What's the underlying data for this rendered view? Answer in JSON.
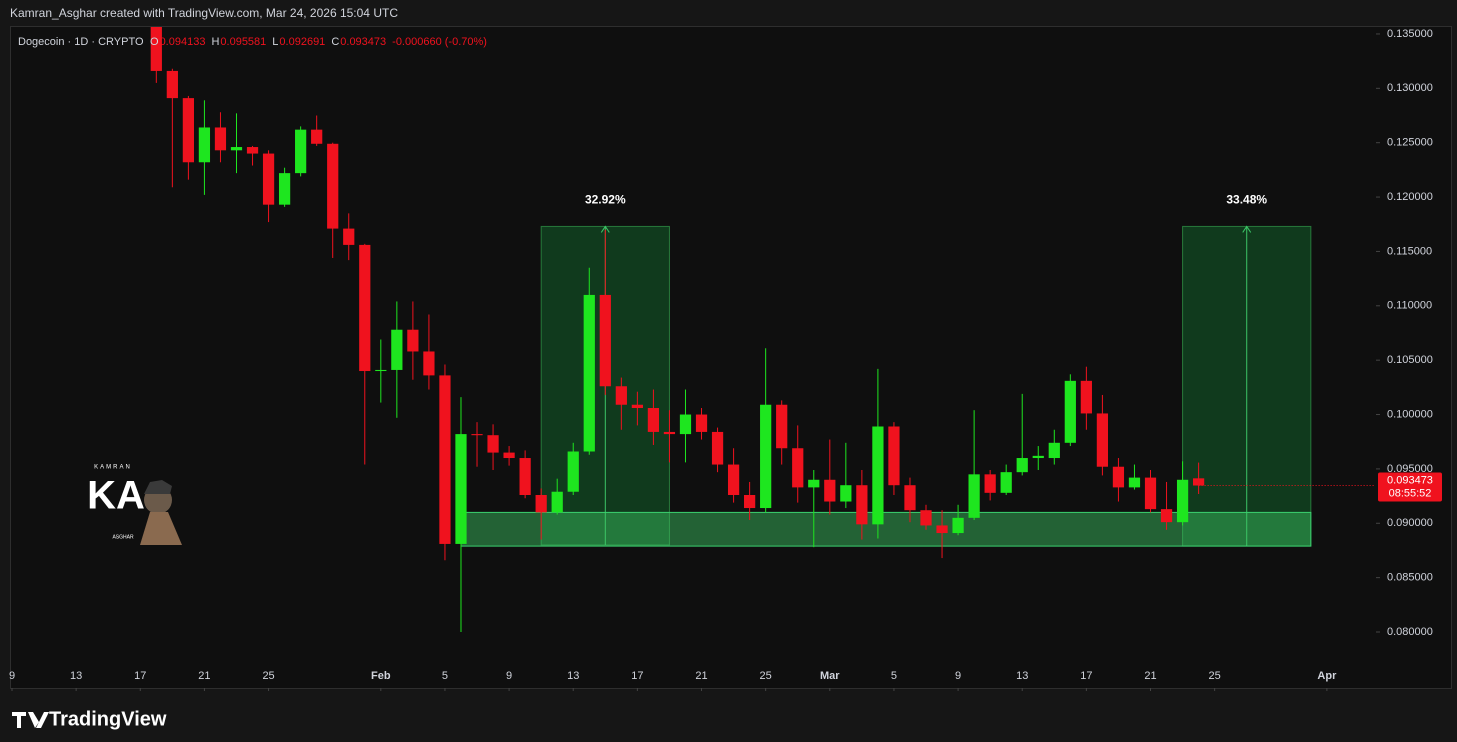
{
  "attribution": "Kamran_Asghar created with TradingView.com, Mar 24, 2026 15:04 UTC",
  "brand": "TradingView",
  "watermark": [
    "KAMRAN",
    "KA",
    "ASGHAR"
  ],
  "chart_data": {
    "type": "candlestick",
    "title": "Dogecoin · 1D · CRYPTO",
    "ohlc_labels": [
      "O",
      "H",
      "L",
      "C"
    ],
    "change": "-0.000660 (-0.70%)",
    "countdown": "08:55:52",
    "up_color": "#1ee61f",
    "down_color": "#f0121e",
    "grid": false,
    "x": [
      "01-18",
      "01-19",
      "01-20",
      "01-21",
      "01-22",
      "01-23",
      "01-24",
      "01-25",
      "01-26",
      "01-27",
      "01-28",
      "01-29",
      "01-30",
      "01-31",
      "02-01",
      "02-02",
      "02-03",
      "02-04",
      "02-05",
      "02-06",
      "02-07",
      "02-08",
      "02-09",
      "02-10",
      "02-11",
      "02-12",
      "02-13",
      "02-14",
      "02-15",
      "02-16",
      "02-17",
      "02-18",
      "02-19",
      "02-20",
      "02-21",
      "02-22",
      "02-23",
      "02-24",
      "02-25",
      "02-26",
      "02-27",
      "02-28",
      "03-01",
      "03-02",
      "03-03",
      "03-04",
      "03-05",
      "03-06",
      "03-07",
      "03-08",
      "03-09",
      "03-10",
      "03-11",
      "03-12",
      "03-13",
      "03-14",
      "03-15",
      "03-16",
      "03-17",
      "03-18",
      "03-19",
      "03-20",
      "03-21",
      "03-22",
      "03-23",
      "03-24"
    ],
    "open": [
      0.1372,
      0.1316,
      0.1291,
      0.1232,
      0.1264,
      0.1243,
      0.1246,
      0.124,
      0.1193,
      0.1222,
      0.1262,
      0.1249,
      0.1171,
      0.1156,
      0.104,
      0.1041,
      0.1078,
      0.1058,
      0.1036,
      0.0881,
      0.0982,
      0.0981,
      0.0965,
      0.096,
      0.0926,
      0.091,
      0.0929,
      0.0966,
      0.111,
      0.1026,
      0.1009,
      0.1006,
      0.0984,
      0.0982,
      0.1,
      0.0984,
      0.0954,
      0.0926,
      0.0914,
      0.1009,
      0.0969,
      0.0933,
      0.094,
      0.092,
      0.0935,
      0.0899,
      0.0989,
      0.0935,
      0.0912,
      0.0898,
      0.0891,
      0.0905,
      0.0945,
      0.0928,
      0.0947,
      0.096,
      0.096,
      0.0974,
      0.1031,
      0.1001,
      0.0952,
      0.0933,
      0.0942,
      0.0913,
      0.0901,
      0.094133
    ],
    "high": [
      0.1385,
      0.1318,
      0.1293,
      0.1289,
      0.1278,
      0.1277,
      0.1247,
      0.1243,
      0.1227,
      0.1265,
      0.1275,
      0.125,
      0.1185,
      0.1157,
      0.1069,
      0.1104,
      0.1104,
      0.1092,
      0.1046,
      0.1016,
      0.0993,
      0.0991,
      0.0971,
      0.0967,
      0.0932,
      0.0941,
      0.0974,
      0.1135,
      0.117,
      0.1034,
      0.1021,
      0.1023,
      0.1004,
      0.1023,
      0.1006,
      0.0988,
      0.0969,
      0.0938,
      0.1061,
      0.1013,
      0.099,
      0.0949,
      0.0977,
      0.0974,
      0.0949,
      0.1042,
      0.0993,
      0.0942,
      0.0917,
      0.0912,
      0.0917,
      0.1004,
      0.0949,
      0.0954,
      0.1019,
      0.0971,
      0.0986,
      0.1037,
      0.1044,
      0.1018,
      0.096,
      0.0954,
      0.0949,
      0.0938,
      0.0957,
      0.095581
    ],
    "low": [
      0.1305,
      0.1209,
      0.1216,
      0.1202,
      0.1232,
      0.1222,
      0.1229,
      0.1177,
      0.1191,
      0.1219,
      0.1247,
      0.1144,
      0.1142,
      0.0954,
      0.1011,
      0.0997,
      0.1032,
      0.1023,
      0.0866,
      0.08,
      0.0952,
      0.0949,
      0.0953,
      0.0923,
      0.0885,
      0.0908,
      0.0926,
      0.0963,
      0.1018,
      0.0986,
      0.099,
      0.0972,
      0.0956,
      0.0956,
      0.0977,
      0.0947,
      0.0919,
      0.0903,
      0.091,
      0.0954,
      0.0919,
      0.0878,
      0.0908,
      0.0914,
      0.0885,
      0.0886,
      0.0926,
      0.0901,
      0.0894,
      0.0868,
      0.0889,
      0.0903,
      0.0921,
      0.0926,
      0.0944,
      0.0949,
      0.0954,
      0.0971,
      0.0986,
      0.0944,
      0.092,
      0.0931,
      0.091,
      0.0894,
      0.0898,
      0.092691
    ],
    "close": [
      0.1316,
      0.1291,
      0.1232,
      0.1264,
      0.1243,
      0.1246,
      0.124,
      0.1193,
      0.1222,
      0.1262,
      0.1249,
      0.1171,
      0.1156,
      0.104,
      0.1041,
      0.1078,
      0.1058,
      0.1036,
      0.0881,
      0.0982,
      0.0981,
      0.0965,
      0.096,
      0.0926,
      0.091,
      0.0929,
      0.0966,
      0.111,
      0.1026,
      0.1009,
      0.1006,
      0.0984,
      0.0982,
      0.1,
      0.0984,
      0.0954,
      0.0926,
      0.0914,
      0.1009,
      0.0969,
      0.0933,
      0.094,
      0.092,
      0.0935,
      0.0899,
      0.0989,
      0.0935,
      0.0912,
      0.0898,
      0.0891,
      0.0905,
      0.0945,
      0.0928,
      0.0947,
      0.096,
      0.0962,
      0.0974,
      0.1031,
      0.1001,
      0.0952,
      0.0933,
      0.0942,
      0.0913,
      0.0901,
      0.094,
      0.093473
    ],
    "xlim": [
      "01-09",
      "04-04"
    ],
    "xticks": [
      {
        "value": "01-09",
        "label": "9"
      },
      {
        "value": "01-13",
        "label": "13"
      },
      {
        "value": "01-17",
        "label": "17"
      },
      {
        "value": "01-21",
        "label": "21"
      },
      {
        "value": "01-25",
        "label": "25"
      },
      {
        "value": "02-01",
        "label": "Feb"
      },
      {
        "value": "02-05",
        "label": "5"
      },
      {
        "value": "02-09",
        "label": "9"
      },
      {
        "value": "02-13",
        "label": "13"
      },
      {
        "value": "02-17",
        "label": "17"
      },
      {
        "value": "02-21",
        "label": "21"
      },
      {
        "value": "02-25",
        "label": "25"
      },
      {
        "value": "03-01",
        "label": "Mar"
      },
      {
        "value": "03-05",
        "label": "5"
      },
      {
        "value": "03-09",
        "label": "9"
      },
      {
        "value": "03-13",
        "label": "13"
      },
      {
        "value": "03-17",
        "label": "17"
      },
      {
        "value": "03-21",
        "label": "21"
      },
      {
        "value": "03-25",
        "label": "25"
      },
      {
        "value": "04-01",
        "label": "Apr"
      }
    ],
    "ylim": [
      0.07485,
      0.13564
    ],
    "yticks": [
      {
        "value": 0.08,
        "label": "0.080000"
      },
      {
        "value": 0.085,
        "label": "0.085000"
      },
      {
        "value": 0.09,
        "label": "0.090000"
      },
      {
        "value": 0.095,
        "label": "0.095000"
      },
      {
        "value": 0.1,
        "label": "0.100000"
      },
      {
        "value": 0.105,
        "label": "0.105000"
      },
      {
        "value": 0.11,
        "label": "0.110000"
      },
      {
        "value": 0.115,
        "label": "0.115000"
      },
      {
        "value": 0.12,
        "label": "0.120000"
      },
      {
        "value": 0.125,
        "label": "0.125000"
      },
      {
        "value": 0.13,
        "label": "0.130000"
      },
      {
        "value": 0.135,
        "label": "0.135000"
      }
    ],
    "support_zone": {
      "x": [
        "02-06",
        "03-31"
      ],
      "y": [
        0.0879,
        0.091
      ]
    },
    "zones": [
      {
        "label": "32.92%",
        "x": [
          "02-11",
          "02-19"
        ],
        "y": [
          0.088,
          0.1173
        ]
      },
      {
        "label": "33.48%",
        "x": [
          "03-23",
          "03-31"
        ],
        "y": [
          0.0879,
          0.1173
        ]
      }
    ]
  }
}
